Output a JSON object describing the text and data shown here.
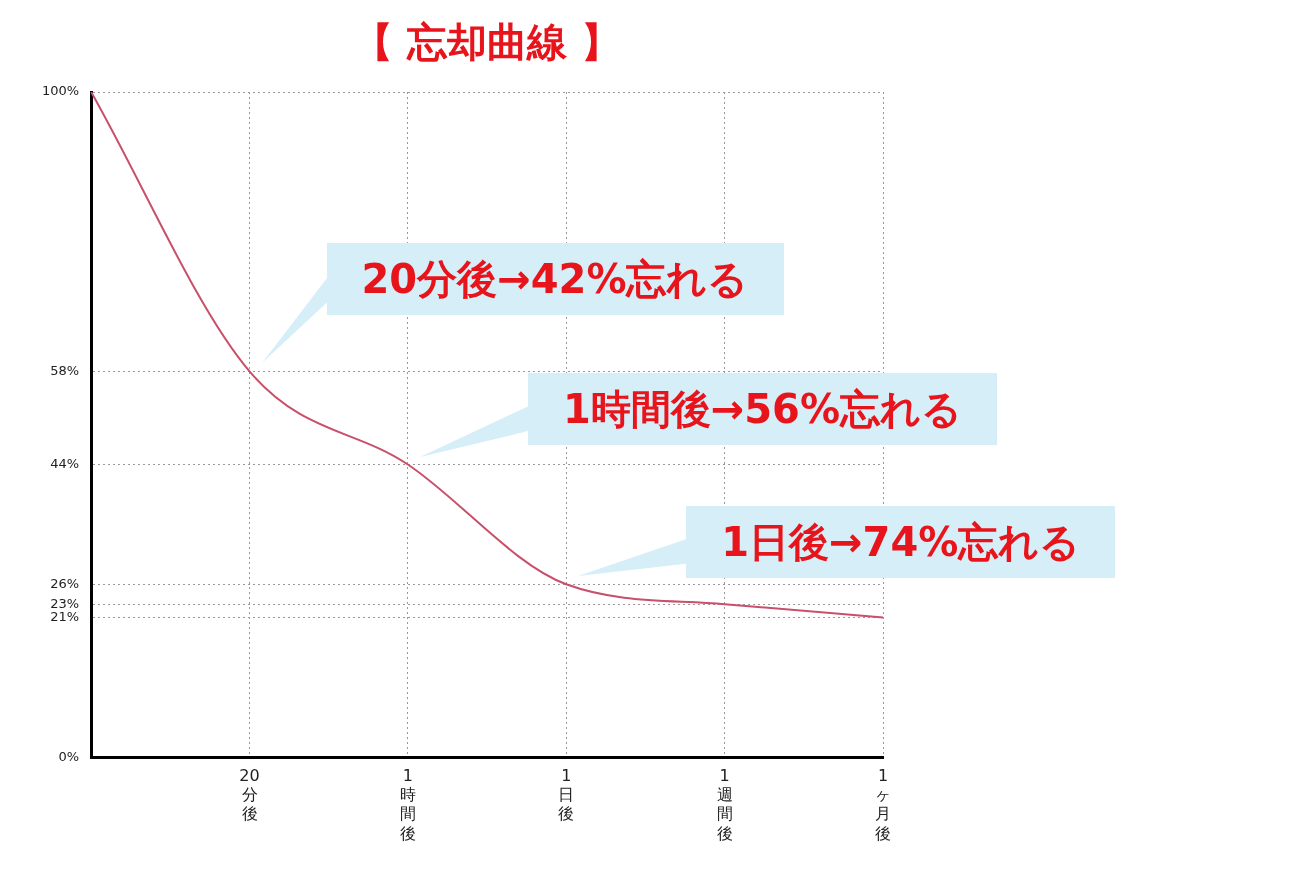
{
  "chart_data": {
    "type": "line",
    "title": "【 忘却曲線 】",
    "categories": [
      null,
      "20分後",
      "1時間後",
      "1日後",
      "1週間後",
      "1ヶ月後"
    ],
    "series": [
      {
        "color": "#c8506a",
        "values": [
          100,
          58,
          44,
          26,
          23,
          21
        ]
      }
    ],
    "ylim": [
      0,
      100
    ],
    "yticks": [
      {
        "value": 0,
        "label": "0%"
      },
      {
        "value": 21,
        "label": "21%"
      },
      {
        "value": 23,
        "label": "23%"
      },
      {
        "value": 26,
        "label": "26%"
      },
      {
        "value": 44,
        "label": "44%"
      },
      {
        "value": 58,
        "label": "58%"
      },
      {
        "value": 100,
        "label": "100%"
      }
    ],
    "annotations": [
      "20分後→42%忘れる",
      "1時間後→56%忘れる",
      "1日後→74%忘れる"
    ],
    "grid": true,
    "legend": false,
    "marker": "none",
    "line_style": "solid"
  }
}
